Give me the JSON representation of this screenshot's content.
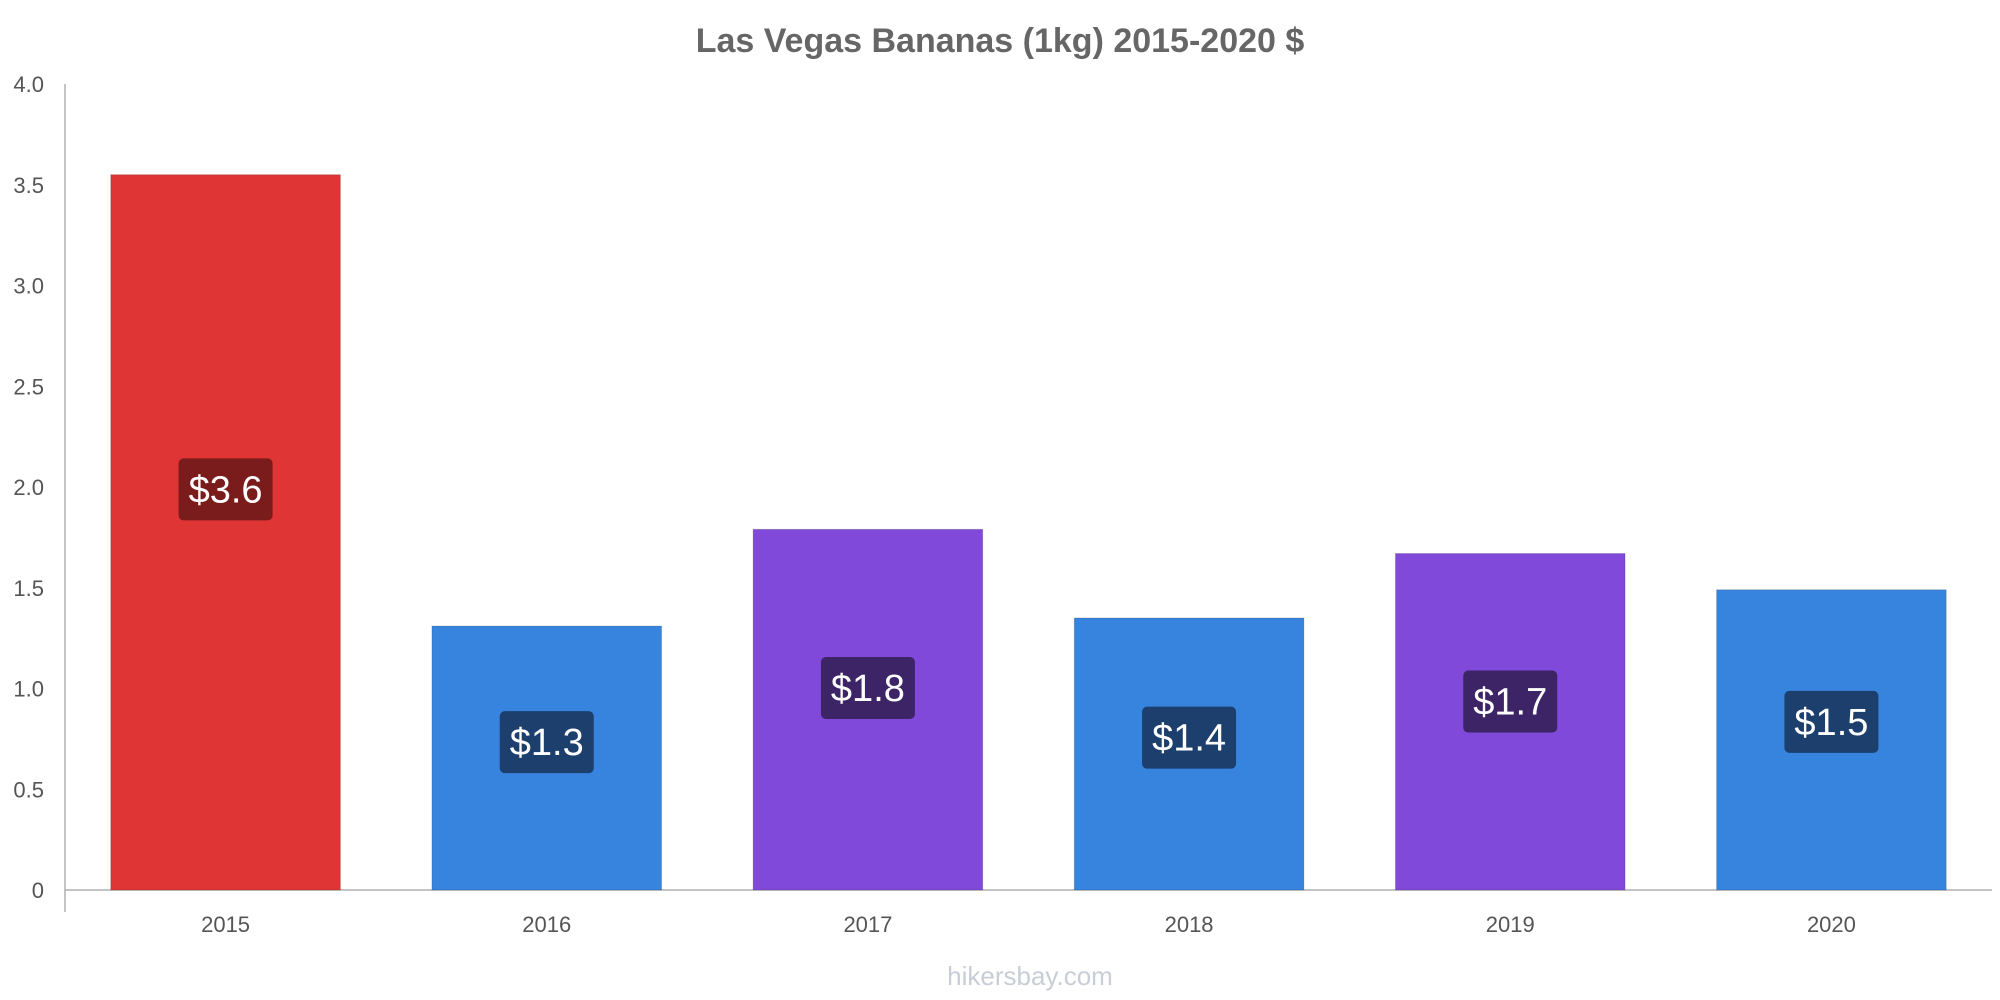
{
  "chart_data": {
    "type": "bar",
    "title": "Las Vegas Bananas (1kg) 2015-2020 $",
    "xlabel": "",
    "ylabel": "",
    "categories": [
      "2015",
      "2016",
      "2017",
      "2018",
      "2019",
      "2020"
    ],
    "values": [
      3.55,
      1.31,
      1.79,
      1.35,
      1.67,
      1.49
    ],
    "data_labels": [
      "$3.6",
      "$1.3",
      "$1.8",
      "$1.4",
      "$1.7",
      "$1.5"
    ],
    "bar_colors": [
      "#e03535",
      "#3784de",
      "#8149d9",
      "#3784de",
      "#8149d9",
      "#3784de"
    ],
    "label_bg_colors": [
      "#7a1c1c",
      "#1c3f6e",
      "#3c2466",
      "#1c3f6e",
      "#3c2466",
      "#1c3f6e"
    ],
    "ylim": [
      0,
      4.0
    ],
    "yticks": [
      0,
      0.5,
      1.0,
      1.5,
      2.0,
      2.5,
      3.0,
      3.5,
      4.0
    ],
    "ytick_labels": [
      "0",
      "0.5",
      "1.0",
      "1.5",
      "2.0",
      "2.5",
      "3.0",
      "3.5",
      "4.0"
    ],
    "grid": false,
    "legend": "none"
  },
  "watermark": "hikersbay.com"
}
